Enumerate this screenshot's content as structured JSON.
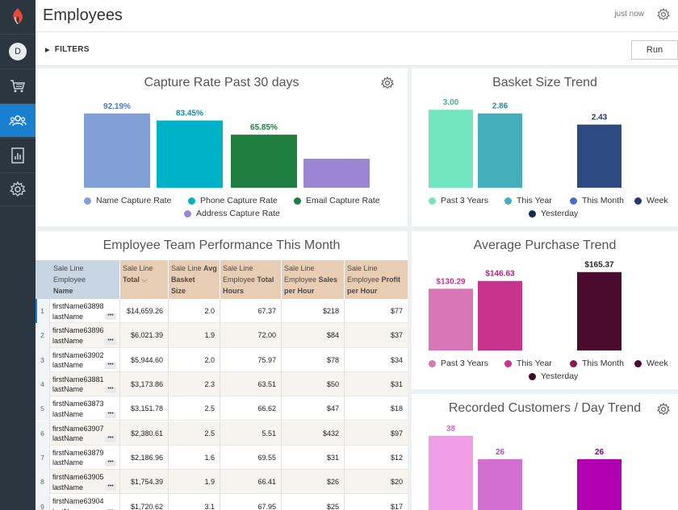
{
  "app": {
    "page_title": "Employees",
    "updated": "just now",
    "avatar_initial": "D",
    "filters_label": "FILTERS",
    "run_label": "Run",
    "sidebar_icons": [
      "logo-icon",
      "cart-icon",
      "users-icon",
      "report-icon",
      "settings-icon"
    ]
  },
  "colors": {
    "sidebar": "#2b3640",
    "active": "#1b7fd0"
  },
  "capture": {
    "title": "Capture Rate Past 30 days",
    "legend": [
      {
        "label": "Name Capture Rate",
        "color": "#7f9fd6"
      },
      {
        "label": "Phone Capture Rate",
        "color": "#00b2c8"
      },
      {
        "label": "Email Capture Rate",
        "color": "#1e7e3f"
      },
      {
        "label": "Address Capture Rate",
        "color": "#9b86d4"
      }
    ]
  },
  "basket": {
    "title": "Basket Size Trend",
    "legend": [
      {
        "label": "Past 3 Years",
        "color": "#73e6bf"
      },
      {
        "label": "This Year",
        "color": "#45aebb"
      },
      {
        "label": "This Month",
        "color": "#4d6cc3"
      },
      {
        "label": "Week",
        "color": "#243a6b"
      },
      {
        "label": "Yesterday",
        "color": "#152a55"
      }
    ]
  },
  "avgpurchase": {
    "title": "Average Purchase Trend",
    "legend": [
      {
        "label": "Past 3 Years",
        "color": "#d976b8"
      },
      {
        "label": "This Year",
        "color": "#c7338d"
      },
      {
        "label": "This Month",
        "color": "#8a1a52"
      },
      {
        "label": "Week",
        "color": "#4a0b2e"
      },
      {
        "label": "Yesterday",
        "color": "#3d0b26"
      }
    ]
  },
  "recorded": {
    "title": "Recorded Customers / Day Trend"
  },
  "table": {
    "title": "Employee Team Performance This Month",
    "headers": [
      {
        "lines": [
          "Sale Line Employee",
          "Name"
        ],
        "bold_last": true
      },
      {
        "lines": [
          "Sale Line",
          "Total ∨"
        ],
        "bold_last": true
      },
      {
        "lines": [
          "Sale Line Avg",
          "Basket",
          "Size"
        ],
        "bold_parts": true
      },
      {
        "lines": [
          "Sale Line",
          "Employee Total",
          "Hours"
        ],
        "bold_parts": true
      },
      {
        "lines": [
          "Sale Line",
          "Employee Sales",
          "per Hour"
        ],
        "bold_parts": true
      },
      {
        "lines": [
          "Sale Line",
          "Employee Profit",
          "per Hour"
        ],
        "bold_parts": true
      }
    ],
    "header_texts": {
      "c0a": "Sale Line Employee",
      "c0b": "Name",
      "c1a": "Sale Line",
      "c1b": "Total",
      "c2a": "Sale Line ",
      "c2a_b": "Avg",
      "c2b": "Basket",
      "c2c": "Size",
      "c3a": "Sale Line",
      "c3b": "Employee ",
      "c3b_b": "Total",
      "c3c": "Hours",
      "c4a": "Sale Line",
      "c4b": "Employee ",
      "c4b_b": "Sales",
      "c4c": "per Hour",
      "c5a": "Sale Line",
      "c5b": "Employee ",
      "c5b_b": "Profit",
      "c5c": "per Hour"
    },
    "rows": [
      {
        "n": "1",
        "first": "firstName63898",
        "last": "lastName",
        "total": "$14,659.26",
        "basket": "2.0",
        "hours": "67.37",
        "sales": "$218",
        "profit": "$77"
      },
      {
        "n": "2",
        "first": "firstName63896",
        "last": "lastName",
        "total": "$6,021.39",
        "basket": "1.9",
        "hours": "72.00",
        "sales": "$84",
        "profit": "$37"
      },
      {
        "n": "3",
        "first": "firstName63902",
        "last": "lastName",
        "total": "$5,944.60",
        "basket": "2.0",
        "hours": "75.97",
        "sales": "$78",
        "profit": "$34"
      },
      {
        "n": "4",
        "first": "firstName63881",
        "last": "lastName",
        "total": "$3,173.86",
        "basket": "2.3",
        "hours": "63.51",
        "sales": "$50",
        "profit": "$31"
      },
      {
        "n": "5",
        "first": "firstName63873",
        "last": "lastName",
        "total": "$3,151.78",
        "basket": "2.5",
        "hours": "66.62",
        "sales": "$47",
        "profit": "$18"
      },
      {
        "n": "6",
        "first": "firstName63907",
        "last": "lastName",
        "total": "$2,380.61",
        "basket": "2.5",
        "hours": "5.51",
        "sales": "$432",
        "profit": "$97"
      },
      {
        "n": "7",
        "first": "firstName63879",
        "last": "lastName",
        "total": "$2,186.96",
        "basket": "1.6",
        "hours": "69.55",
        "sales": "$31",
        "profit": "$12"
      },
      {
        "n": "8",
        "first": "firstName63905",
        "last": "lastName",
        "total": "$1,754.39",
        "basket": "1.9",
        "hours": "66.41",
        "sales": "$26",
        "profit": "$20"
      },
      {
        "n": "9",
        "first": "firstName63904",
        "last": "lastName",
        "total": "$1,720.62",
        "basket": "3.1",
        "hours": "67.95",
        "sales": "$25",
        "profit": "$17"
      }
    ]
  },
  "chart_data": [
    {
      "type": "bar",
      "title": "Capture Rate Past 30 days",
      "categories": [
        "Name Capture Rate",
        "Phone Capture Rate",
        "Email Capture Rate",
        "Address Capture Rate"
      ],
      "values": [
        92.19,
        83.45,
        65.85,
        36
      ],
      "labels": [
        "92.19%",
        "83.45%",
        "65.85%",
        ""
      ],
      "colors": [
        "#7f9fd6",
        "#00b2c8",
        "#1e7e3f",
        "#9b86d4"
      ],
      "label_colors": [
        "#4a78c4",
        "#0a8fa3",
        "#1e7e3f",
        "#7a66b8"
      ],
      "ylim": [
        0,
        100
      ],
      "legend": "bottom"
    },
    {
      "type": "bar",
      "title": "Basket Size Trend",
      "categories": [
        "Past 3 Years",
        "This Year",
        "This Month"
      ],
      "values": [
        3.0,
        2.86,
        2.43
      ],
      "labels": [
        "3.00",
        "2.86",
        "2.43"
      ],
      "colors": [
        "#73e6bf",
        "#45aebb",
        "#2d4a82"
      ],
      "label_colors": [
        "#3cb88d",
        "#2d8a96",
        "#243a6b"
      ],
      "ylim": [
        0,
        3.1
      ],
      "legend": "bottom"
    },
    {
      "type": "bar",
      "title": "Average Purchase Trend",
      "categories": [
        "Past 3 Years",
        "This Year",
        "Week"
      ],
      "values": [
        130.29,
        146.63,
        165.37
      ],
      "labels": [
        "$130.29",
        "$146.63",
        "$165.37"
      ],
      "colors": [
        "#d976b8",
        "#c7338d",
        "#4a0b2e"
      ],
      "label_colors": [
        "#c7338d",
        "#b0287a",
        "#222222"
      ],
      "ylim": [
        0,
        170
      ],
      "legend": "bottom"
    },
    {
      "type": "bar",
      "title": "Recorded Customers / Day Trend",
      "categories": [
        "Past 3 Years",
        "This Year",
        "This Month"
      ],
      "values": [
        38,
        26,
        26
      ],
      "labels": [
        "38",
        "26",
        "26"
      ],
      "colors": [
        "#f09ee6",
        "#d26fd0",
        "#b000b0"
      ],
      "label_colors": [
        "#d268c8",
        "#b64bb3",
        "#7a0078"
      ],
      "ylim": [
        0,
        40
      ],
      "legend": "none"
    }
  ]
}
